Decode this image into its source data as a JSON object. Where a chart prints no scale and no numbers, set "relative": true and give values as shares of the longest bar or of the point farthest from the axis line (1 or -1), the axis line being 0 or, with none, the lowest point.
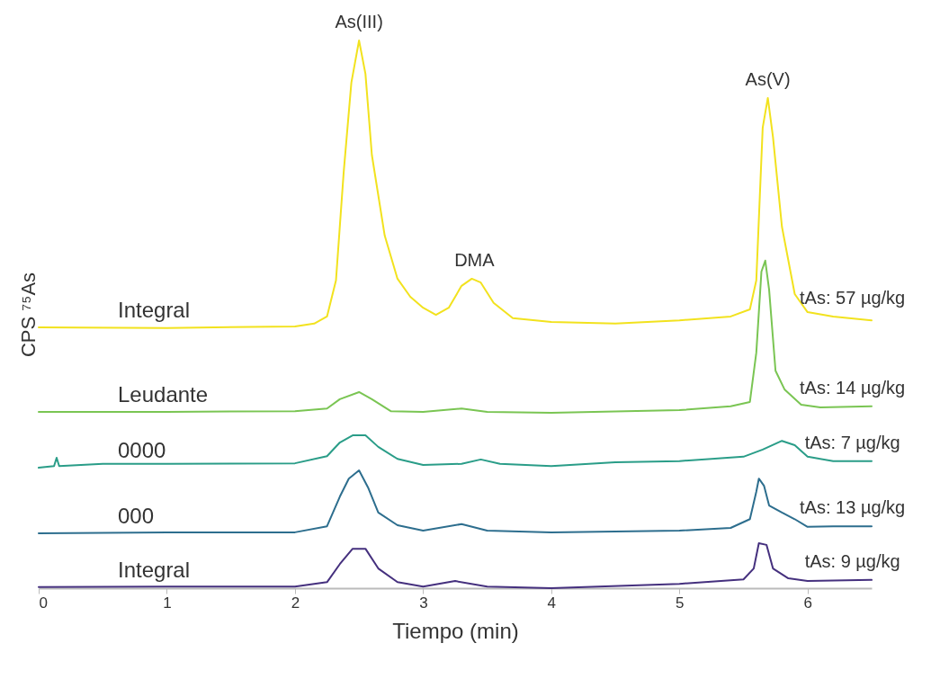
{
  "chart_data": {
    "type": "line",
    "relative": true,
    "xlabel": "Tiempo (min)",
    "ylabel": "CPS ⁷⁵As",
    "xlim": [
      0,
      6.5
    ],
    "xticks": [
      0,
      1,
      2,
      3,
      4,
      5,
      6
    ],
    "grid": false,
    "legend": false,
    "line_style": "solid",
    "series": [
      {
        "name": "Integral",
        "color": "#f2e21e",
        "x": [
          0,
          1,
          2,
          2.15,
          2.25,
          2.32,
          2.38,
          2.44,
          2.5,
          2.55,
          2.6,
          2.7,
          2.8,
          2.9,
          3.0,
          3.1,
          3.2,
          3.3,
          3.38,
          3.45,
          3.55,
          3.7,
          4.0,
          4.5,
          5.0,
          5.4,
          5.55,
          5.6,
          5.65,
          5.69,
          5.73,
          5.8,
          5.9,
          6.0,
          6.2,
          6.5
        ],
        "values": [
          0.476,
          0.475,
          0.478,
          0.483,
          0.496,
          0.562,
          0.759,
          0.923,
          1.0,
          0.939,
          0.791,
          0.644,
          0.565,
          0.532,
          0.512,
          0.499,
          0.512,
          0.552,
          0.565,
          0.558,
          0.521,
          0.493,
          0.486,
          0.483,
          0.489,
          0.496,
          0.509,
          0.562,
          0.841,
          0.895,
          0.824,
          0.66,
          0.537,
          0.504,
          0.496,
          0.489
        ]
      },
      {
        "name": "Leudante",
        "color": "#7ac553",
        "x": [
          0,
          1,
          2,
          2.25,
          2.35,
          2.5,
          2.6,
          2.75,
          3.0,
          3.3,
          3.5,
          4,
          5,
          5.4,
          5.55,
          5.6,
          5.64,
          5.67,
          5.7,
          5.75,
          5.82,
          5.95,
          6.1,
          6.5
        ],
        "values": [
          0.322,
          0.322,
          0.323,
          0.328,
          0.345,
          0.358,
          0.345,
          0.323,
          0.322,
          0.328,
          0.322,
          0.32,
          0.325,
          0.332,
          0.34,
          0.43,
          0.578,
          0.598,
          0.545,
          0.397,
          0.363,
          0.335,
          0.33,
          0.332
        ]
      },
      {
        "name": "0000",
        "color": "#2a9d88",
        "x": [
          0,
          0.12,
          0.14,
          0.16,
          0.5,
          1,
          2,
          2.25,
          2.35,
          2.45,
          2.55,
          2.65,
          2.8,
          3.0,
          3.3,
          3.45,
          3.6,
          4,
          4.5,
          5,
          5.5,
          5.65,
          5.8,
          5.9,
          6.0,
          6.2,
          6.5
        ],
        "values": [
          0.22,
          0.223,
          0.238,
          0.223,
          0.227,
          0.227,
          0.228,
          0.241,
          0.266,
          0.279,
          0.279,
          0.258,
          0.236,
          0.225,
          0.227,
          0.235,
          0.227,
          0.223,
          0.23,
          0.232,
          0.24,
          0.253,
          0.269,
          0.261,
          0.24,
          0.232,
          0.232
        ]
      },
      {
        "name": "000",
        "color": "#2d6e8e",
        "x": [
          0,
          1,
          2,
          2.25,
          2.35,
          2.42,
          2.5,
          2.57,
          2.65,
          2.8,
          3.0,
          3.3,
          3.5,
          4,
          5,
          5.4,
          5.55,
          5.6,
          5.62,
          5.66,
          5.7,
          5.8,
          5.9,
          6.0,
          6.2,
          6.5
        ],
        "values": [
          0.1,
          0.102,
          0.102,
          0.113,
          0.167,
          0.2,
          0.215,
          0.184,
          0.138,
          0.115,
          0.105,
          0.117,
          0.105,
          0.102,
          0.105,
          0.11,
          0.126,
          0.176,
          0.2,
          0.187,
          0.151,
          0.138,
          0.126,
          0.112,
          0.113,
          0.113
        ]
      },
      {
        "name": "Integral",
        "color": "#45307e",
        "x": [
          0,
          1,
          2,
          2.25,
          2.35,
          2.45,
          2.55,
          2.65,
          2.8,
          3.0,
          3.25,
          3.5,
          4,
          5,
          5.5,
          5.58,
          5.62,
          5.68,
          5.73,
          5.85,
          6.0,
          6.5
        ],
        "values": [
          0.002,
          0.003,
          0.003,
          0.011,
          0.044,
          0.072,
          0.072,
          0.036,
          0.011,
          0.003,
          0.013,
          0.003,
          0.0,
          0.008,
          0.016,
          0.036,
          0.082,
          0.079,
          0.036,
          0.018,
          0.013,
          0.015
        ]
      }
    ],
    "annotations": [
      {
        "text": "As(III)",
        "x": 2.5,
        "y": 1.0
      },
      {
        "text": "DMA",
        "x": 3.4,
        "y": 0.565
      },
      {
        "text": "As(V)",
        "x": 5.69,
        "y": 0.895
      },
      {
        "text": "tAs: 57 µg/kg",
        "x": 6.35,
        "y": 0.496
      },
      {
        "text": "tAs: 14 µg/kg",
        "x": 6.35,
        "y": 0.332
      },
      {
        "text": "tAs: 7 µg/kg",
        "x": 6.35,
        "y": 0.232
      },
      {
        "text": "tAs: 13 µg/kg",
        "x": 6.35,
        "y": 0.113
      },
      {
        "text": "tAs: 9 µg/kg",
        "x": 6.35,
        "y": 0.015
      }
    ]
  }
}
